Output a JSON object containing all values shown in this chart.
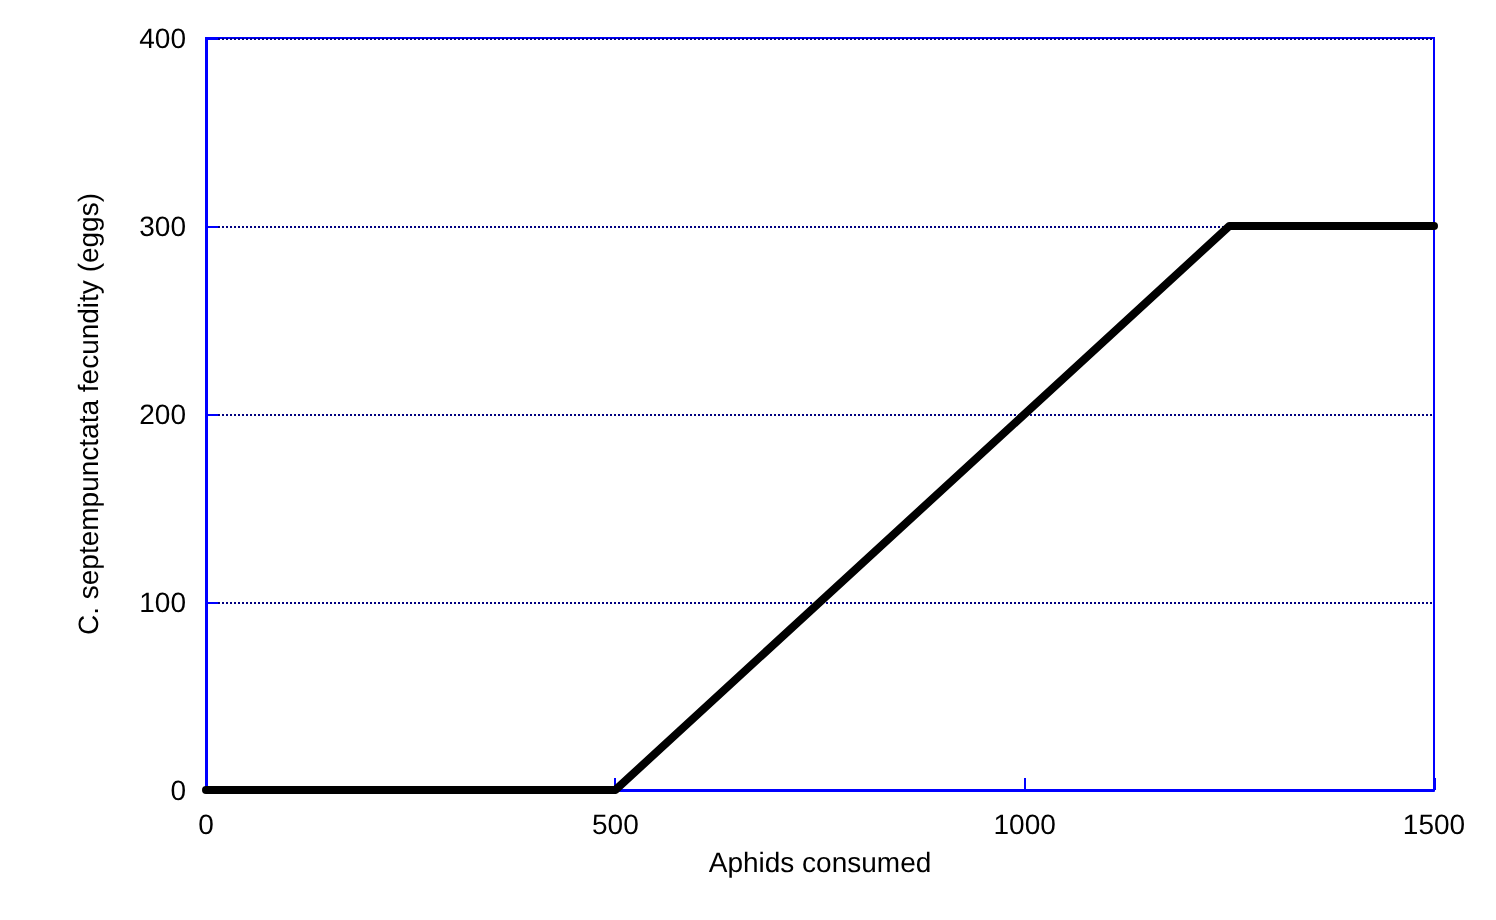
{
  "chart_data": {
    "type": "line",
    "xlabel": "Aphids consumed",
    "ylabel": "C. septempunctata fecundity (eggs)",
    "x": [
      0,
      500,
      1250,
      1500
    ],
    "series": [
      {
        "color": "#000000",
        "values": [
          0,
          0,
          300,
          300
        ]
      }
    ],
    "xlim": [
      0,
      1500
    ],
    "xticks": [
      0,
      500,
      1000,
      1500
    ],
    "ylim": [
      0,
      400
    ],
    "yticks": [
      0,
      100,
      200,
      300,
      400
    ],
    "grid": "y",
    "marker": "none",
    "line_style": "solid"
  }
}
